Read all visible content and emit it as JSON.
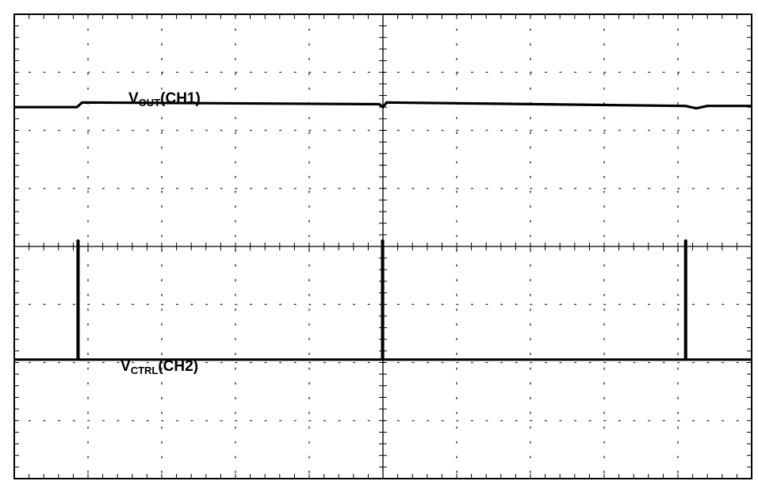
{
  "chart_data": {
    "type": "line",
    "title": "",
    "xlabel": "",
    "ylabel": "",
    "grid": true,
    "divisions": {
      "x": 10,
      "y": 8
    },
    "xlim": [
      0,
      10
    ],
    "ylim": [
      -4,
      4
    ],
    "series": [
      {
        "name": "CH1",
        "label_main": "V",
        "label_sub": "OUT",
        "label_suffix": "(CH1)",
        "color": "#000000",
        "points": [
          [
            0,
            2.4
          ],
          [
            0.85,
            2.4
          ],
          [
            0.92,
            2.48
          ],
          [
            4.95,
            2.45
          ],
          [
            5.0,
            2.4
          ],
          [
            5.05,
            2.48
          ],
          [
            9.1,
            2.42
          ],
          [
            9.25,
            2.38
          ],
          [
            9.4,
            2.42
          ],
          [
            10,
            2.42
          ]
        ]
      },
      {
        "name": "CH2",
        "label_main": "V",
        "label_sub": "CTRL",
        "label_suffix": "(CH2)",
        "color": "#000000",
        "points": [
          [
            0,
            -1.95
          ],
          [
            0.86,
            -1.95
          ],
          [
            0.86,
            0.1
          ],
          [
            0.87,
            0.1
          ],
          [
            0.87,
            -1.95
          ],
          [
            4.99,
            -1.95
          ],
          [
            4.99,
            0.1
          ],
          [
            5.0,
            0.1
          ],
          [
            5.0,
            -1.95
          ],
          [
            9.1,
            -1.95
          ],
          [
            9.1,
            0.1
          ],
          [
            9.11,
            0.1
          ],
          [
            9.11,
            -1.95
          ],
          [
            10,
            -1.95
          ]
        ]
      }
    ]
  }
}
